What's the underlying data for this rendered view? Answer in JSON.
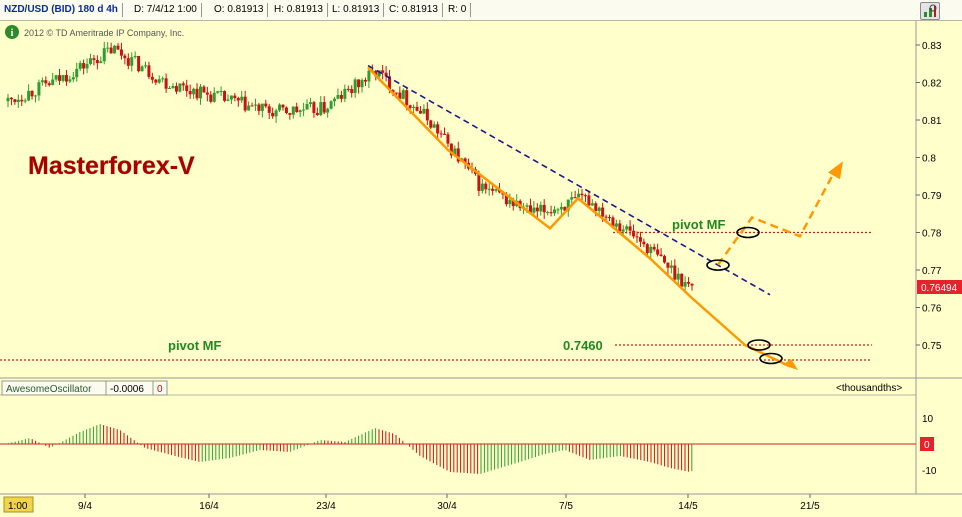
{
  "header": {
    "symbol": "NZD/USD (BID) 180 d 4h",
    "date": "D: 7/4/12 1:00",
    "open": "O: 0.81913",
    "high": "H: 0.81913",
    "low": "L: 0.81913",
    "close": "C: 0.81913",
    "range": "R: 0"
  },
  "copyright": "2012 © TD Ameritrade IP Company, Inc.",
  "annotations": {
    "brand": "Masterforex-V",
    "pivot_upper": "pivot MF",
    "pivot_lower": "pivot MF",
    "level_label": "0.7460"
  },
  "price_axis": {
    "ticks": [
      "0.83",
      "0.82",
      "0.81",
      "0.8",
      "0.79",
      "0.78",
      "0.77",
      "0.76",
      "0.75"
    ],
    "current_price": "0.76494"
  },
  "indicator": {
    "name": "AwesomeOscillator",
    "value": "-0.0006",
    "zero_box": "0",
    "units": "<thousandths>",
    "ticks": [
      "10",
      "-10"
    ],
    "zero_label": "0"
  },
  "time_axis": {
    "ticks": [
      "9/4",
      "16/4",
      "23/4",
      "30/4",
      "7/5",
      "14/5",
      "21/5"
    ],
    "cursor_label": "1:00"
  },
  "colors": {
    "background": "#ffffcc",
    "candle_up": "#2e9e2e",
    "candle_down": "#cc1111",
    "trend_orange": "#ff9900",
    "trend_blue": "#1a1a8c",
    "pivot_dotted": "#cc2222",
    "brand_text": "#aa0000",
    "label_green": "#228822"
  },
  "chart_data": [
    {
      "type": "candlestick",
      "title": "NZD/USD (BID) 180 d 4h",
      "ylim": [
        0.744,
        0.835
      ],
      "x_ticks": [
        "9/4",
        "16/4",
        "23/4",
        "30/4",
        "7/5",
        "14/5",
        "21/5"
      ],
      "y_ticks": [
        0.75,
        0.76,
        0.77,
        0.78,
        0.79,
        0.8,
        0.81,
        0.82,
        0.83
      ],
      "approx_close_path": [
        {
          "x": "2/4",
          "y": 0.815
        },
        {
          "x": "6/4",
          "y": 0.821
        },
        {
          "x": "9/4",
          "y": 0.829
        },
        {
          "x": "12/4",
          "y": 0.82
        },
        {
          "x": "16/4",
          "y": 0.816
        },
        {
          "x": "19/4",
          "y": 0.812
        },
        {
          "x": "23/4",
          "y": 0.813
        },
        {
          "x": "25/4",
          "y": 0.823
        },
        {
          "x": "28/4",
          "y": 0.81
        },
        {
          "x": "2/5",
          "y": 0.792
        },
        {
          "x": "5/5",
          "y": 0.785
        },
        {
          "x": "7/5",
          "y": 0.789
        },
        {
          "x": "10/5",
          "y": 0.778
        },
        {
          "x": "14/5",
          "y": 0.765
        }
      ],
      "current_price": 0.76494,
      "horizontal_levels": [
        0.78,
        0.75,
        0.746
      ],
      "annotations": [
        "pivot MF",
        "pivot MF",
        "0.7460",
        "Masterforex-V"
      ]
    },
    {
      "type": "bar",
      "title": "AwesomeOscillator",
      "value": -0.0006,
      "units": "thousandths",
      "ylim": [
        -14,
        14
      ],
      "y_ticks": [
        10,
        -10
      ]
    }
  ]
}
